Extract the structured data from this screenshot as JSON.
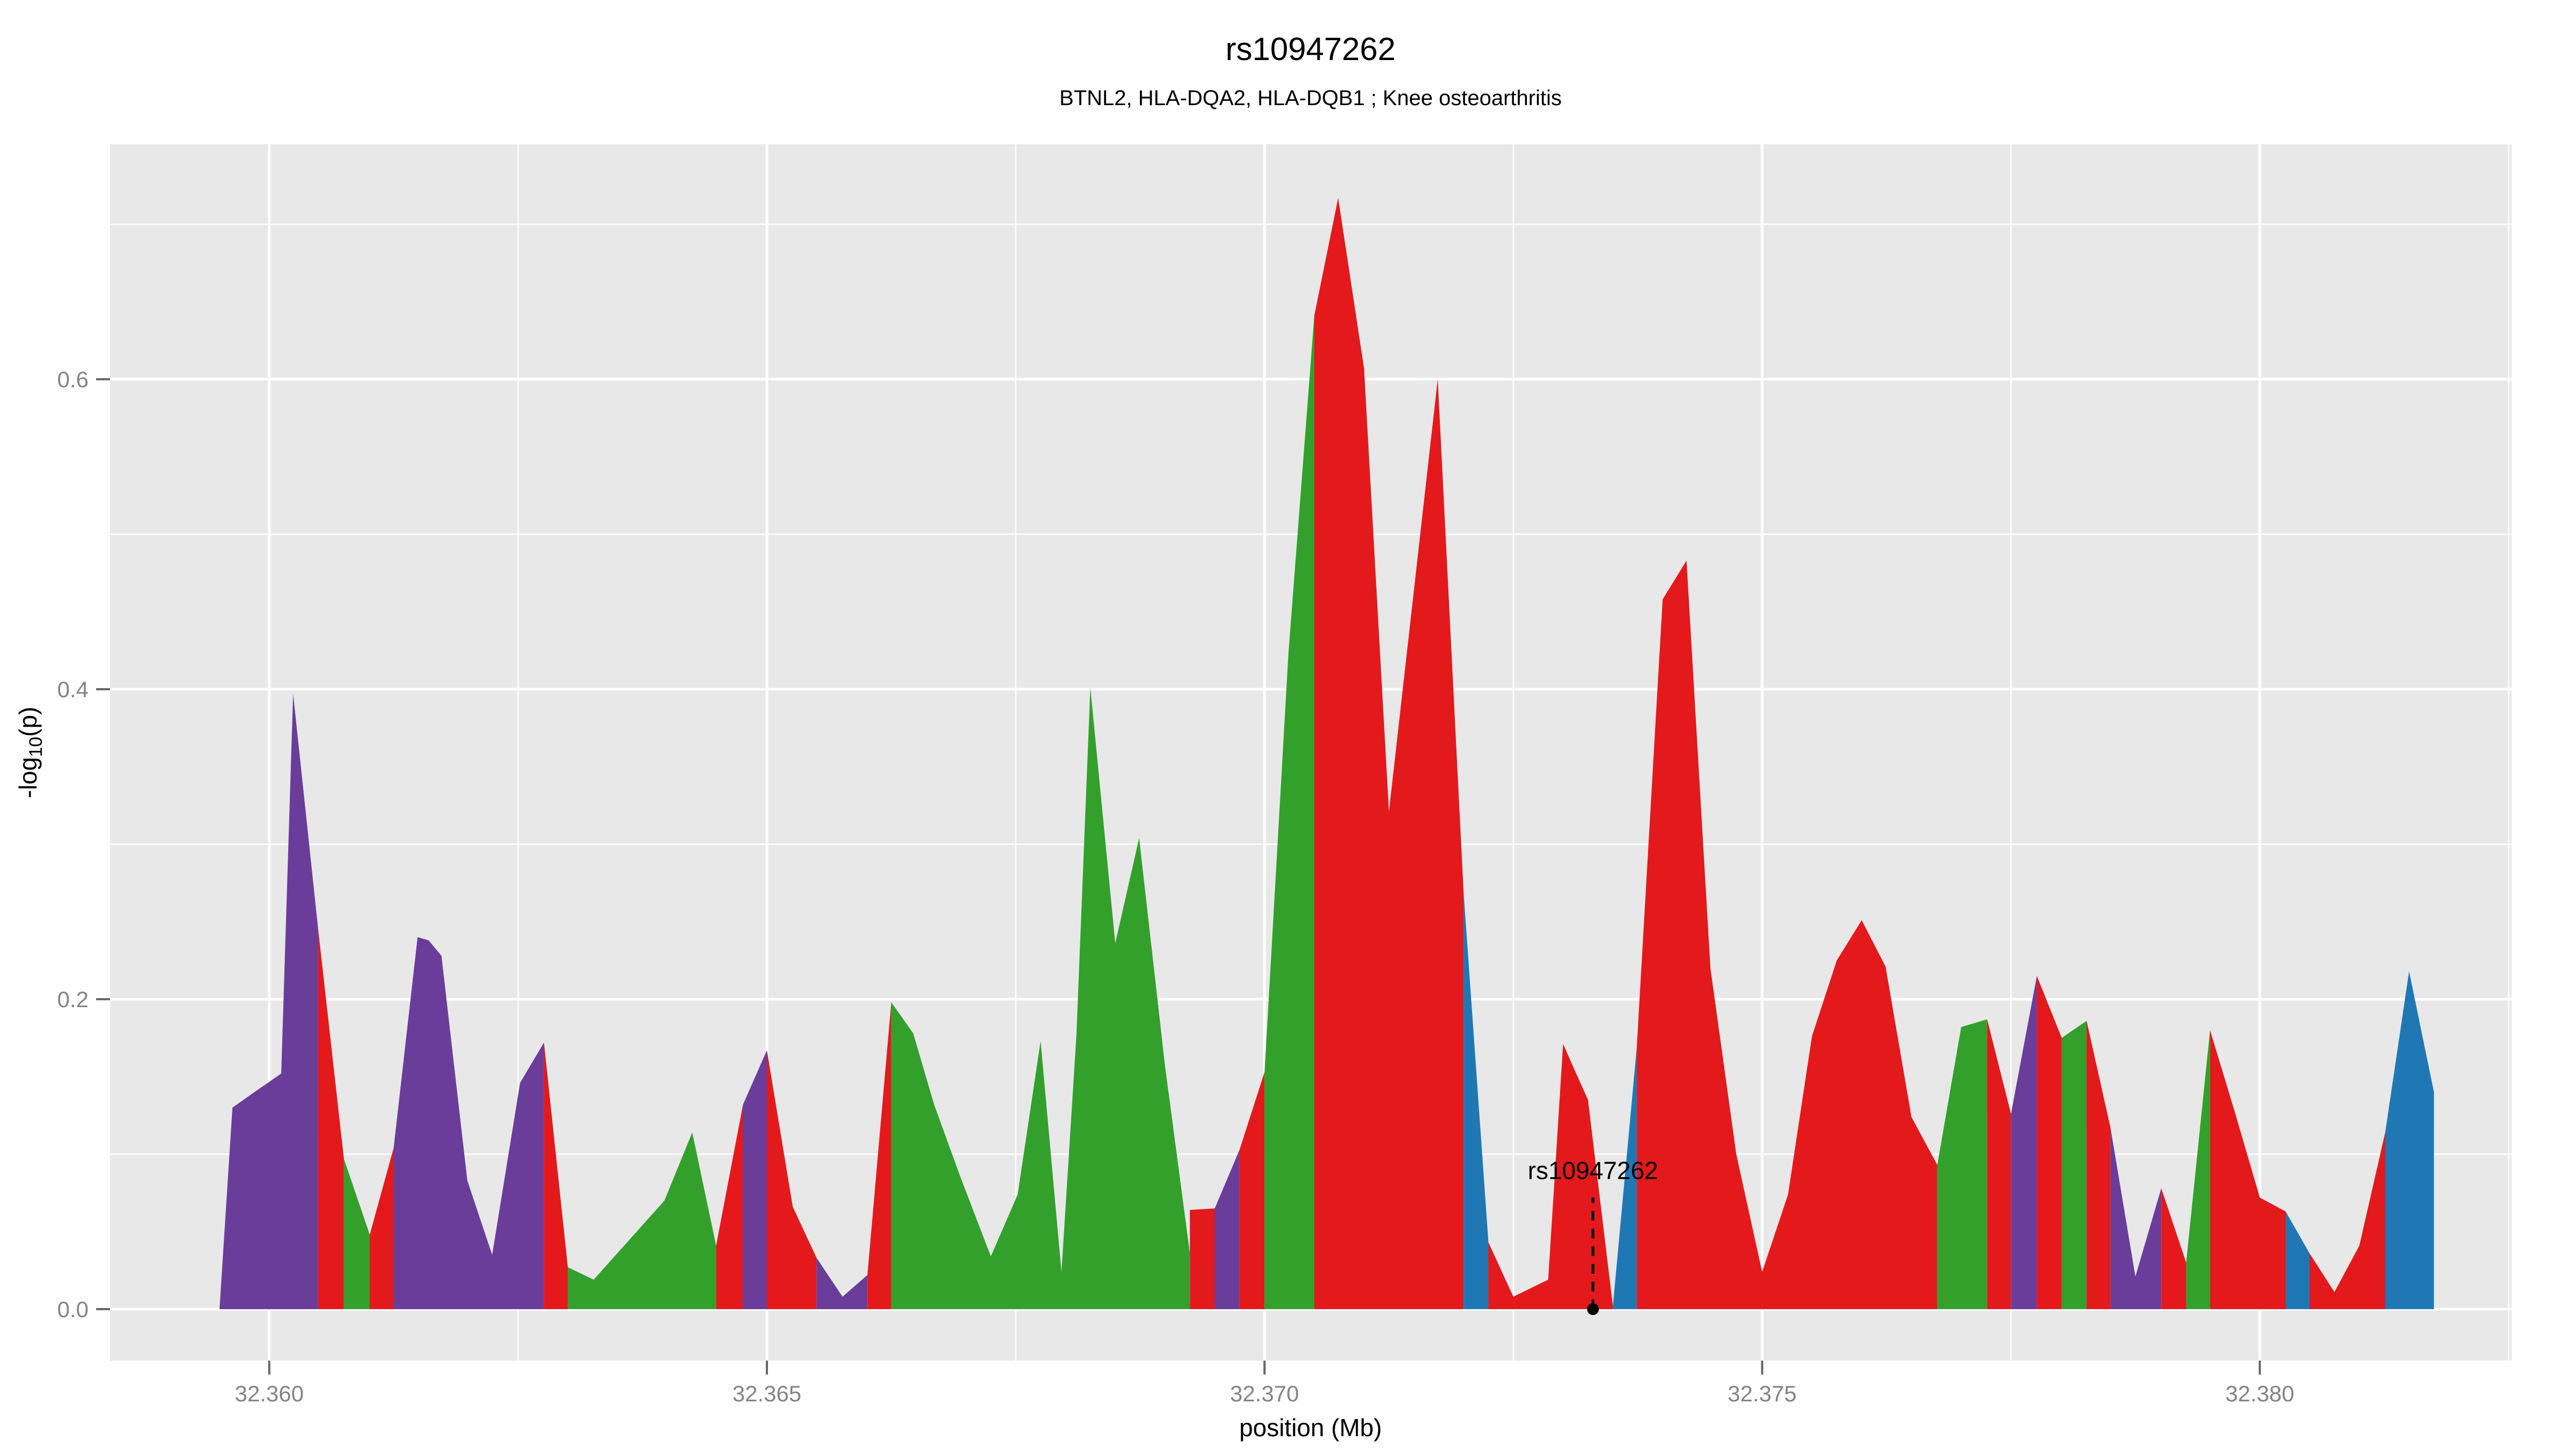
{
  "chart_data": {
    "type": "area",
    "title": "rs10947262",
    "subtitle": "BTNL2, HLA-DQA2, HLA-DQB1 ; Knee osteoarthritis",
    "xlabel": "position (Mb)",
    "ylabel_parts": {
      "pre": "-log",
      "sub": "10",
      "post": "(p)"
    },
    "x_axis": {
      "min": 32.3584,
      "max": 32.38253,
      "major_ticks": [
        32.36,
        32.365,
        32.37,
        32.375,
        32.38
      ],
      "tick_labels": [
        "32.360",
        "32.365",
        "32.370",
        "32.375",
        "32.380"
      ],
      "minor_gridlines": [
        32.3625,
        32.3675,
        32.3725,
        32.3775,
        32.3825
      ]
    },
    "y_axis": {
      "min": -0.0332,
      "max": 0.7516,
      "major_ticks": [
        0.0,
        0.2,
        0.4,
        0.6
      ],
      "tick_labels": [
        "0.0",
        "0.2",
        "0.4",
        "0.6"
      ],
      "minor_gridlines": [
        0.1,
        0.3,
        0.5,
        0.7
      ]
    },
    "palette": {
      "red": "#E3191C",
      "green": "#33A02C",
      "blue": "#1F78B4",
      "purple": "#6A3D9A"
    },
    "annotation": {
      "label": "rs10947262",
      "x": 32.3733,
      "point_y": 0.0,
      "line_top_y": 0.072,
      "label_baseline_y": 0.084,
      "color": "#000000"
    },
    "grid": "on",
    "legend": "none",
    "segments": [
      {
        "color": "purple",
        "points": [
          [
            32.3595,
            0.0
          ],
          [
            32.35963,
            0.13
          ],
          [
            32.35985,
            0.14
          ],
          [
            32.36012,
            0.152
          ],
          [
            32.36024,
            0.397
          ],
          [
            32.36049,
            0.246
          ]
        ]
      },
      {
        "color": "red",
        "points": [
          [
            32.36049,
            0.246
          ],
          [
            32.36075,
            0.097
          ]
        ]
      },
      {
        "color": "green",
        "points": [
          [
            32.36075,
            0.097
          ],
          [
            32.36101,
            0.048
          ]
        ]
      },
      {
        "color": "red",
        "points": [
          [
            32.36101,
            0.048
          ],
          [
            32.36125,
            0.104
          ]
        ]
      },
      {
        "color": "purple",
        "points": [
          [
            32.36125,
            0.104
          ],
          [
            32.36149,
            0.24
          ],
          [
            32.3616,
            0.238
          ],
          [
            32.36173,
            0.228
          ],
          [
            32.36199,
            0.083
          ],
          [
            32.36224,
            0.035
          ],
          [
            32.36252,
            0.146
          ],
          [
            32.36276,
            0.172
          ]
        ]
      },
      {
        "color": "red",
        "points": [
          [
            32.36276,
            0.172
          ],
          [
            32.363,
            0.027
          ]
        ]
      },
      {
        "color": "green",
        "points": [
          [
            32.363,
            0.027
          ],
          [
            32.36326,
            0.019
          ],
          [
            32.36397,
            0.07
          ],
          [
            32.36425,
            0.114
          ],
          [
            32.36449,
            0.041
          ]
        ]
      },
      {
        "color": "red",
        "points": [
          [
            32.36449,
            0.041
          ],
          [
            32.36476,
            0.132
          ]
        ]
      },
      {
        "color": "purple",
        "points": [
          [
            32.36476,
            0.132
          ],
          [
            32.365,
            0.167
          ]
        ]
      },
      {
        "color": "red",
        "points": [
          [
            32.365,
            0.167
          ],
          [
            32.36526,
            0.066
          ],
          [
            32.3655,
            0.033
          ]
        ]
      },
      {
        "color": "purple",
        "points": [
          [
            32.3655,
            0.033
          ],
          [
            32.36576,
            0.008
          ],
          [
            32.36601,
            0.022
          ]
        ]
      },
      {
        "color": "red",
        "points": [
          [
            32.36601,
            0.022
          ],
          [
            32.36625,
            0.198
          ]
        ]
      },
      {
        "color": "green",
        "points": [
          [
            32.36625,
            0.198
          ],
          [
            32.36647,
            0.178
          ],
          [
            32.36668,
            0.132
          ],
          [
            32.36694,
            0.086
          ],
          [
            32.36725,
            0.034
          ],
          [
            32.36752,
            0.074
          ],
          [
            32.36775,
            0.173
          ],
          [
            32.36796,
            0.024
          ],
          [
            32.36811,
            0.177
          ],
          [
            32.36825,
            0.401
          ],
          [
            32.3685,
            0.236
          ],
          [
            32.36874,
            0.304
          ],
          [
            32.369,
            0.157
          ],
          [
            32.36925,
            0.036
          ]
        ]
      },
      {
        "color": "red",
        "points": [
          [
            32.36925,
            0.064
          ],
          [
            32.3695,
            0.065
          ]
        ]
      },
      {
        "color": "purple",
        "points": [
          [
            32.3695,
            0.065
          ],
          [
            32.36975,
            0.103
          ]
        ]
      },
      {
        "color": "red",
        "points": [
          [
            32.36975,
            0.103
          ],
          [
            32.37,
            0.153
          ]
        ]
      },
      {
        "color": "green",
        "points": [
          [
            32.37,
            0.153
          ],
          [
            32.37024,
            0.423
          ],
          [
            32.3705,
            0.641
          ]
        ]
      },
      {
        "color": "red",
        "points": [
          [
            32.3705,
            0.641
          ],
          [
            32.37074,
            0.717
          ],
          [
            32.371,
            0.607
          ],
          [
            32.37125,
            0.321
          ],
          [
            32.37174,
            0.6
          ],
          [
            32.372,
            0.269
          ]
        ]
      },
      {
        "color": "blue",
        "points": [
          [
            32.372,
            0.269
          ],
          [
            32.37225,
            0.043
          ]
        ]
      },
      {
        "color": "red",
        "points": [
          [
            32.37225,
            0.043
          ],
          [
            32.3725,
            0.008
          ],
          [
            32.37285,
            0.019
          ],
          [
            32.373,
            0.171
          ],
          [
            32.37325,
            0.135
          ],
          [
            32.3735,
            0.002
          ]
        ]
      },
      {
        "color": "blue",
        "points": [
          [
            32.3735,
            0.002
          ],
          [
            32.37374,
            0.169
          ]
        ]
      },
      {
        "color": "red",
        "points": [
          [
            32.37374,
            0.169
          ],
          [
            32.374,
            0.458
          ],
          [
            32.37424,
            0.483
          ],
          [
            32.37448,
            0.22
          ],
          [
            32.37474,
            0.1
          ],
          [
            32.375,
            0.024
          ],
          [
            32.37526,
            0.074
          ],
          [
            32.3755,
            0.176
          ],
          [
            32.37575,
            0.225
          ],
          [
            32.376,
            0.251
          ],
          [
            32.37624,
            0.221
          ],
          [
            32.3765,
            0.124
          ],
          [
            32.37676,
            0.093
          ]
        ]
      },
      {
        "color": "green",
        "points": [
          [
            32.37676,
            0.093
          ],
          [
            32.377,
            0.182
          ],
          [
            32.37726,
            0.187
          ]
        ]
      },
      {
        "color": "red",
        "points": [
          [
            32.37726,
            0.187
          ],
          [
            32.3775,
            0.126
          ]
        ]
      },
      {
        "color": "purple",
        "points": [
          [
            32.3775,
            0.126
          ],
          [
            32.37776,
            0.215
          ]
        ]
      },
      {
        "color": "red",
        "points": [
          [
            32.37776,
            0.215
          ],
          [
            32.37801,
            0.175
          ]
        ]
      },
      {
        "color": "green",
        "points": [
          [
            32.37801,
            0.175
          ],
          [
            32.37826,
            0.186
          ]
        ]
      },
      {
        "color": "red",
        "points": [
          [
            32.37826,
            0.186
          ],
          [
            32.3785,
            0.117
          ]
        ]
      },
      {
        "color": "purple",
        "points": [
          [
            32.3785,
            0.117
          ],
          [
            32.37875,
            0.021
          ],
          [
            32.37901,
            0.078
          ]
        ]
      },
      {
        "color": "red",
        "points": [
          [
            32.37901,
            0.078
          ],
          [
            32.37926,
            0.03
          ]
        ]
      },
      {
        "color": "green",
        "points": [
          [
            32.37926,
            0.03
          ],
          [
            32.3795,
            0.18
          ]
        ]
      },
      {
        "color": "red",
        "points": [
          [
            32.3795,
            0.18
          ],
          [
            32.37975,
            0.127
          ],
          [
            32.38,
            0.072
          ],
          [
            32.38026,
            0.063
          ]
        ]
      },
      {
        "color": "blue",
        "points": [
          [
            32.38026,
            0.063
          ],
          [
            32.3805,
            0.036
          ]
        ]
      },
      {
        "color": "red",
        "points": [
          [
            32.3805,
            0.036
          ],
          [
            32.38075,
            0.011
          ],
          [
            32.381,
            0.041
          ],
          [
            32.38126,
            0.114
          ]
        ]
      },
      {
        "color": "blue",
        "points": [
          [
            32.38126,
            0.114
          ],
          [
            32.3815,
            0.218
          ],
          [
            32.38175,
            0.14
          ]
        ]
      }
    ]
  },
  "style": {
    "panel_bg": "#E8E8E8",
    "grid_color": "#FFFFFF",
    "tick_label_color": "#848484",
    "tick_mark_color": "#666666",
    "text_color": "#000000",
    "page_bg": "#FFFFFF"
  }
}
